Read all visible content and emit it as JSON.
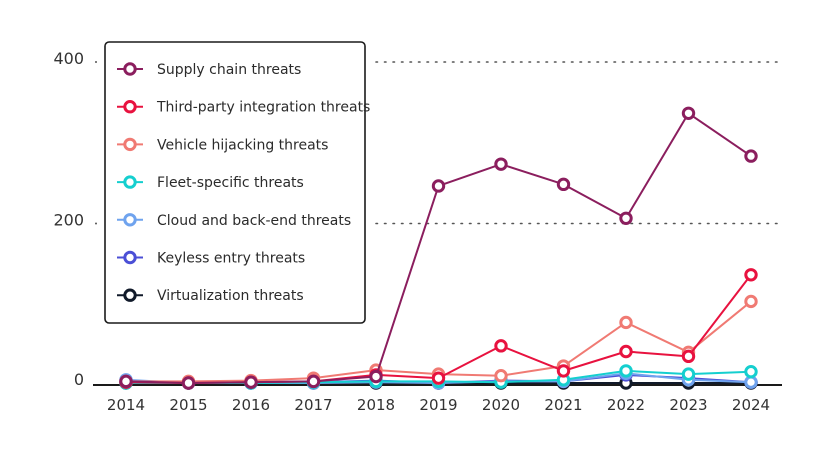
{
  "chart_data": {
    "type": "line",
    "title": "",
    "xlabel": "",
    "ylabel": "",
    "x": [
      "2014",
      "2015",
      "2016",
      "2017",
      "2018",
      "2019",
      "2020",
      "2021",
      "2022",
      "2023",
      "2024"
    ],
    "ylim": [
      0,
      400
    ],
    "yticks": [
      0,
      200,
      400
    ],
    "grid": "dotted horizontal at 200 and 400",
    "legend_position": "top-left",
    "series": [
      {
        "name": "Supply chain threats",
        "color": "#8b1e5e",
        "values": [
          2,
          0,
          1,
          2,
          8,
          244,
          271,
          246,
          204,
          334,
          281
        ]
      },
      {
        "name": "Third-party integration threats",
        "color": "#e8123f",
        "values": [
          1,
          0,
          1,
          2,
          10,
          6,
          46,
          15,
          39,
          33,
          134
        ]
      },
      {
        "name": "Vehicle hijacking threats",
        "color": "#f07a73",
        "values": [
          2,
          2,
          3,
          6,
          16,
          11,
          9,
          21,
          75,
          38,
          101
        ]
      },
      {
        "name": "Fleet-specific threats",
        "color": "#15cfcf",
        "values": [
          0,
          0,
          0,
          1,
          2,
          2,
          1,
          4,
          15,
          11,
          14
        ]
      },
      {
        "name": "Cloud and back-end threats",
        "color": "#6fa3ee",
        "values": [
          4,
          0,
          0,
          0,
          1,
          0,
          2,
          2,
          12,
          4,
          1
        ]
      },
      {
        "name": "Keyless entry threats",
        "color": "#4b4fd6",
        "values": [
          3,
          0,
          0,
          1,
          3,
          0,
          3,
          2,
          10,
          6,
          1
        ]
      },
      {
        "name": "Virtualization threats",
        "color": "#111a2a",
        "values": [
          0,
          0,
          0,
          0,
          0,
          0,
          0,
          0,
          0,
          0,
          0
        ]
      }
    ]
  }
}
